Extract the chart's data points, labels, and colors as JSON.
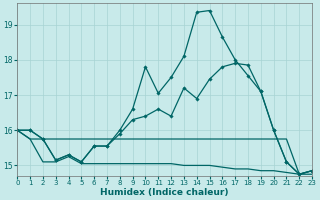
{
  "xlabel": "Humidex (Indice chaleur)",
  "background_color": "#c8eaea",
  "line_color": "#006666",
  "grid_color": "#a8d4d4",
  "xlim": [
    0,
    23
  ],
  "ylim": [
    14.7,
    19.6
  ],
  "xticks": [
    0,
    1,
    2,
    3,
    4,
    5,
    6,
    7,
    8,
    9,
    10,
    11,
    12,
    13,
    14,
    15,
    16,
    17,
    18,
    19,
    20,
    21,
    22,
    23
  ],
  "yticks": [
    15,
    16,
    17,
    18,
    19
  ],
  "line1_x": [
    0,
    1,
    2,
    3,
    4,
    5,
    6,
    7,
    8,
    9,
    10,
    11,
    12,
    13,
    14,
    15,
    16,
    17,
    18,
    19,
    20,
    21,
    22,
    23
  ],
  "line1_y": [
    16.0,
    16.0,
    15.75,
    15.15,
    15.3,
    15.1,
    15.55,
    15.55,
    15.9,
    16.3,
    16.4,
    16.6,
    16.4,
    17.2,
    16.9,
    17.45,
    17.8,
    17.9,
    17.85,
    17.1,
    16.0,
    15.1,
    14.75,
    14.85
  ],
  "line1_marker": true,
  "line2_x": [
    0,
    1,
    2,
    3,
    4,
    5,
    6,
    7,
    8,
    9,
    10,
    11,
    12,
    13,
    14,
    15,
    16,
    17,
    18,
    19,
    20,
    21,
    22,
    23
  ],
  "line2_y": [
    16.0,
    16.0,
    15.75,
    15.15,
    15.3,
    15.1,
    15.55,
    15.55,
    16.0,
    16.6,
    17.8,
    17.05,
    17.5,
    18.1,
    19.35,
    19.4,
    18.65,
    18.0,
    17.55,
    17.1,
    16.0,
    15.1,
    14.75,
    14.85
  ],
  "line2_marker": true,
  "line3_x": [
    0,
    1,
    2,
    3,
    4,
    5,
    6,
    7,
    8,
    9,
    10,
    11,
    12,
    13,
    14,
    15,
    16,
    17,
    18,
    19,
    20,
    21,
    22,
    23
  ],
  "line3_y": [
    16.0,
    15.75,
    15.75,
    15.75,
    15.75,
    15.75,
    15.75,
    15.75,
    15.75,
    15.75,
    15.75,
    15.75,
    15.75,
    15.75,
    15.75,
    15.75,
    15.75,
    15.75,
    15.75,
    15.75,
    15.75,
    15.75,
    14.75,
    14.85
  ],
  "line3_marker": false,
  "line4_x": [
    0,
    1,
    2,
    3,
    4,
    5,
    6,
    7,
    8,
    9,
    10,
    11,
    12,
    13,
    14,
    15,
    16,
    17,
    18,
    19,
    20,
    21,
    22,
    23
  ],
  "line4_y": [
    16.0,
    15.75,
    15.1,
    15.1,
    15.25,
    15.05,
    15.05,
    15.05,
    15.05,
    15.05,
    15.05,
    15.05,
    15.05,
    15.0,
    15.0,
    15.0,
    14.95,
    14.9,
    14.9,
    14.85,
    14.85,
    14.8,
    14.75,
    14.75
  ],
  "line4_marker": false
}
